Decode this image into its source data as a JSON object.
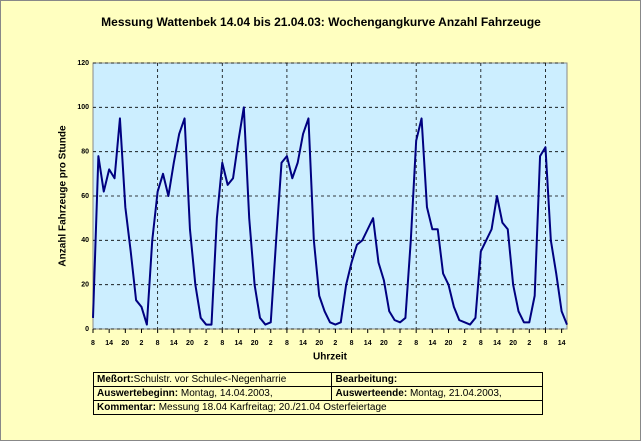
{
  "chart_data": {
    "type": "line",
    "title": "Messung Wattenbek 14.04 bis 21.04.03: Wochengangkurve Anzahl Fahrzeuge",
    "x_label": "Uhrzeit",
    "y_label": "Anzahl Fahrzeuge pro Stunde",
    "x": [
      0,
      2,
      4,
      6,
      8,
      10,
      12,
      14,
      16,
      18,
      20,
      22,
      24,
      26,
      28,
      30,
      32,
      34,
      36,
      38,
      40,
      42,
      44,
      46,
      48,
      50,
      52,
      54,
      56,
      58,
      60,
      62,
      64,
      66,
      68,
      70,
      72,
      74,
      76,
      78,
      80,
      82,
      84,
      86,
      88,
      90,
      92,
      94,
      96,
      98,
      100,
      102,
      104,
      106,
      108,
      110,
      112,
      114,
      116,
      118,
      120,
      122,
      124,
      126,
      128,
      130,
      132,
      134,
      136,
      138,
      140,
      142,
      144,
      146,
      148,
      150,
      152,
      154,
      156,
      158,
      160,
      162,
      164,
      166,
      168,
      170,
      172,
      174,
      176
    ],
    "series": [
      {
        "color": "#000080",
        "values": [
          5,
          78,
          62,
          72,
          68,
          95,
          55,
          35,
          13,
          10,
          2,
          40,
          62,
          70,
          60,
          75,
          88,
          95,
          45,
          20,
          5,
          2,
          2,
          50,
          75,
          65,
          68,
          85,
          100,
          50,
          20,
          5,
          2,
          3,
          40,
          75,
          78,
          68,
          75,
          88,
          95,
          40,
          15,
          8,
          3,
          2,
          3,
          20,
          30,
          38,
          40,
          45,
          50,
          30,
          22,
          8,
          4,
          3,
          5,
          40,
          85,
          95,
          55,
          45,
          45,
          25,
          20,
          10,
          4,
          3,
          2,
          5,
          35,
          40,
          45,
          60,
          48,
          45,
          20,
          8,
          3,
          3,
          15,
          78,
          82,
          40,
          25,
          8,
          2
        ]
      }
    ],
    "xlim": [
      0,
      176
    ],
    "ylim": [
      0,
      120
    ],
    "yticks": [
      0,
      20,
      40,
      60,
      80,
      100,
      120
    ],
    "xticks": [
      {
        "value": 0,
        "label": "8"
      },
      {
        "value": 6,
        "label": "14"
      },
      {
        "value": 12,
        "label": "20"
      },
      {
        "value": 18,
        "label": "2"
      },
      {
        "value": 24,
        "label": "8"
      },
      {
        "value": 30,
        "label": "14"
      },
      {
        "value": 36,
        "label": "20"
      },
      {
        "value": 42,
        "label": "2"
      },
      {
        "value": 48,
        "label": "8"
      },
      {
        "value": 54,
        "label": "14"
      },
      {
        "value": 60,
        "label": "20"
      },
      {
        "value": 66,
        "label": "2"
      },
      {
        "value": 72,
        "label": "8"
      },
      {
        "value": 78,
        "label": "14"
      },
      {
        "value": 84,
        "label": "20"
      },
      {
        "value": 90,
        "label": "2"
      },
      {
        "value": 96,
        "label": "8"
      },
      {
        "value": 102,
        "label": "14"
      },
      {
        "value": 108,
        "label": "20"
      },
      {
        "value": 114,
        "label": "2"
      },
      {
        "value": 120,
        "label": "8"
      },
      {
        "value": 126,
        "label": "14"
      },
      {
        "value": 132,
        "label": "20"
      },
      {
        "value": 138,
        "label": "2"
      },
      {
        "value": 144,
        "label": "8"
      },
      {
        "value": 150,
        "label": "14"
      },
      {
        "value": 156,
        "label": "20"
      },
      {
        "value": 162,
        "label": "2"
      },
      {
        "value": 168,
        "label": "8"
      },
      {
        "value": 174,
        "label": "14"
      }
    ],
    "grid": true
  },
  "info_table": {
    "location_label": "Meßort:",
    "location": "Schulstr. vor Schule<-Negenharrie",
    "editor_label": "Bearbeitung:",
    "start_label": "Auswertebeginn:",
    "start": "Montag, 14.04.2003,",
    "end_label": "Auswerteende:",
    "end": "Montag, 21.04.2003,",
    "comment_label": "Kommentar:",
    "comment": "Messung 18.04 Karfreitag; 20./21.04 Osterfeiertage"
  }
}
